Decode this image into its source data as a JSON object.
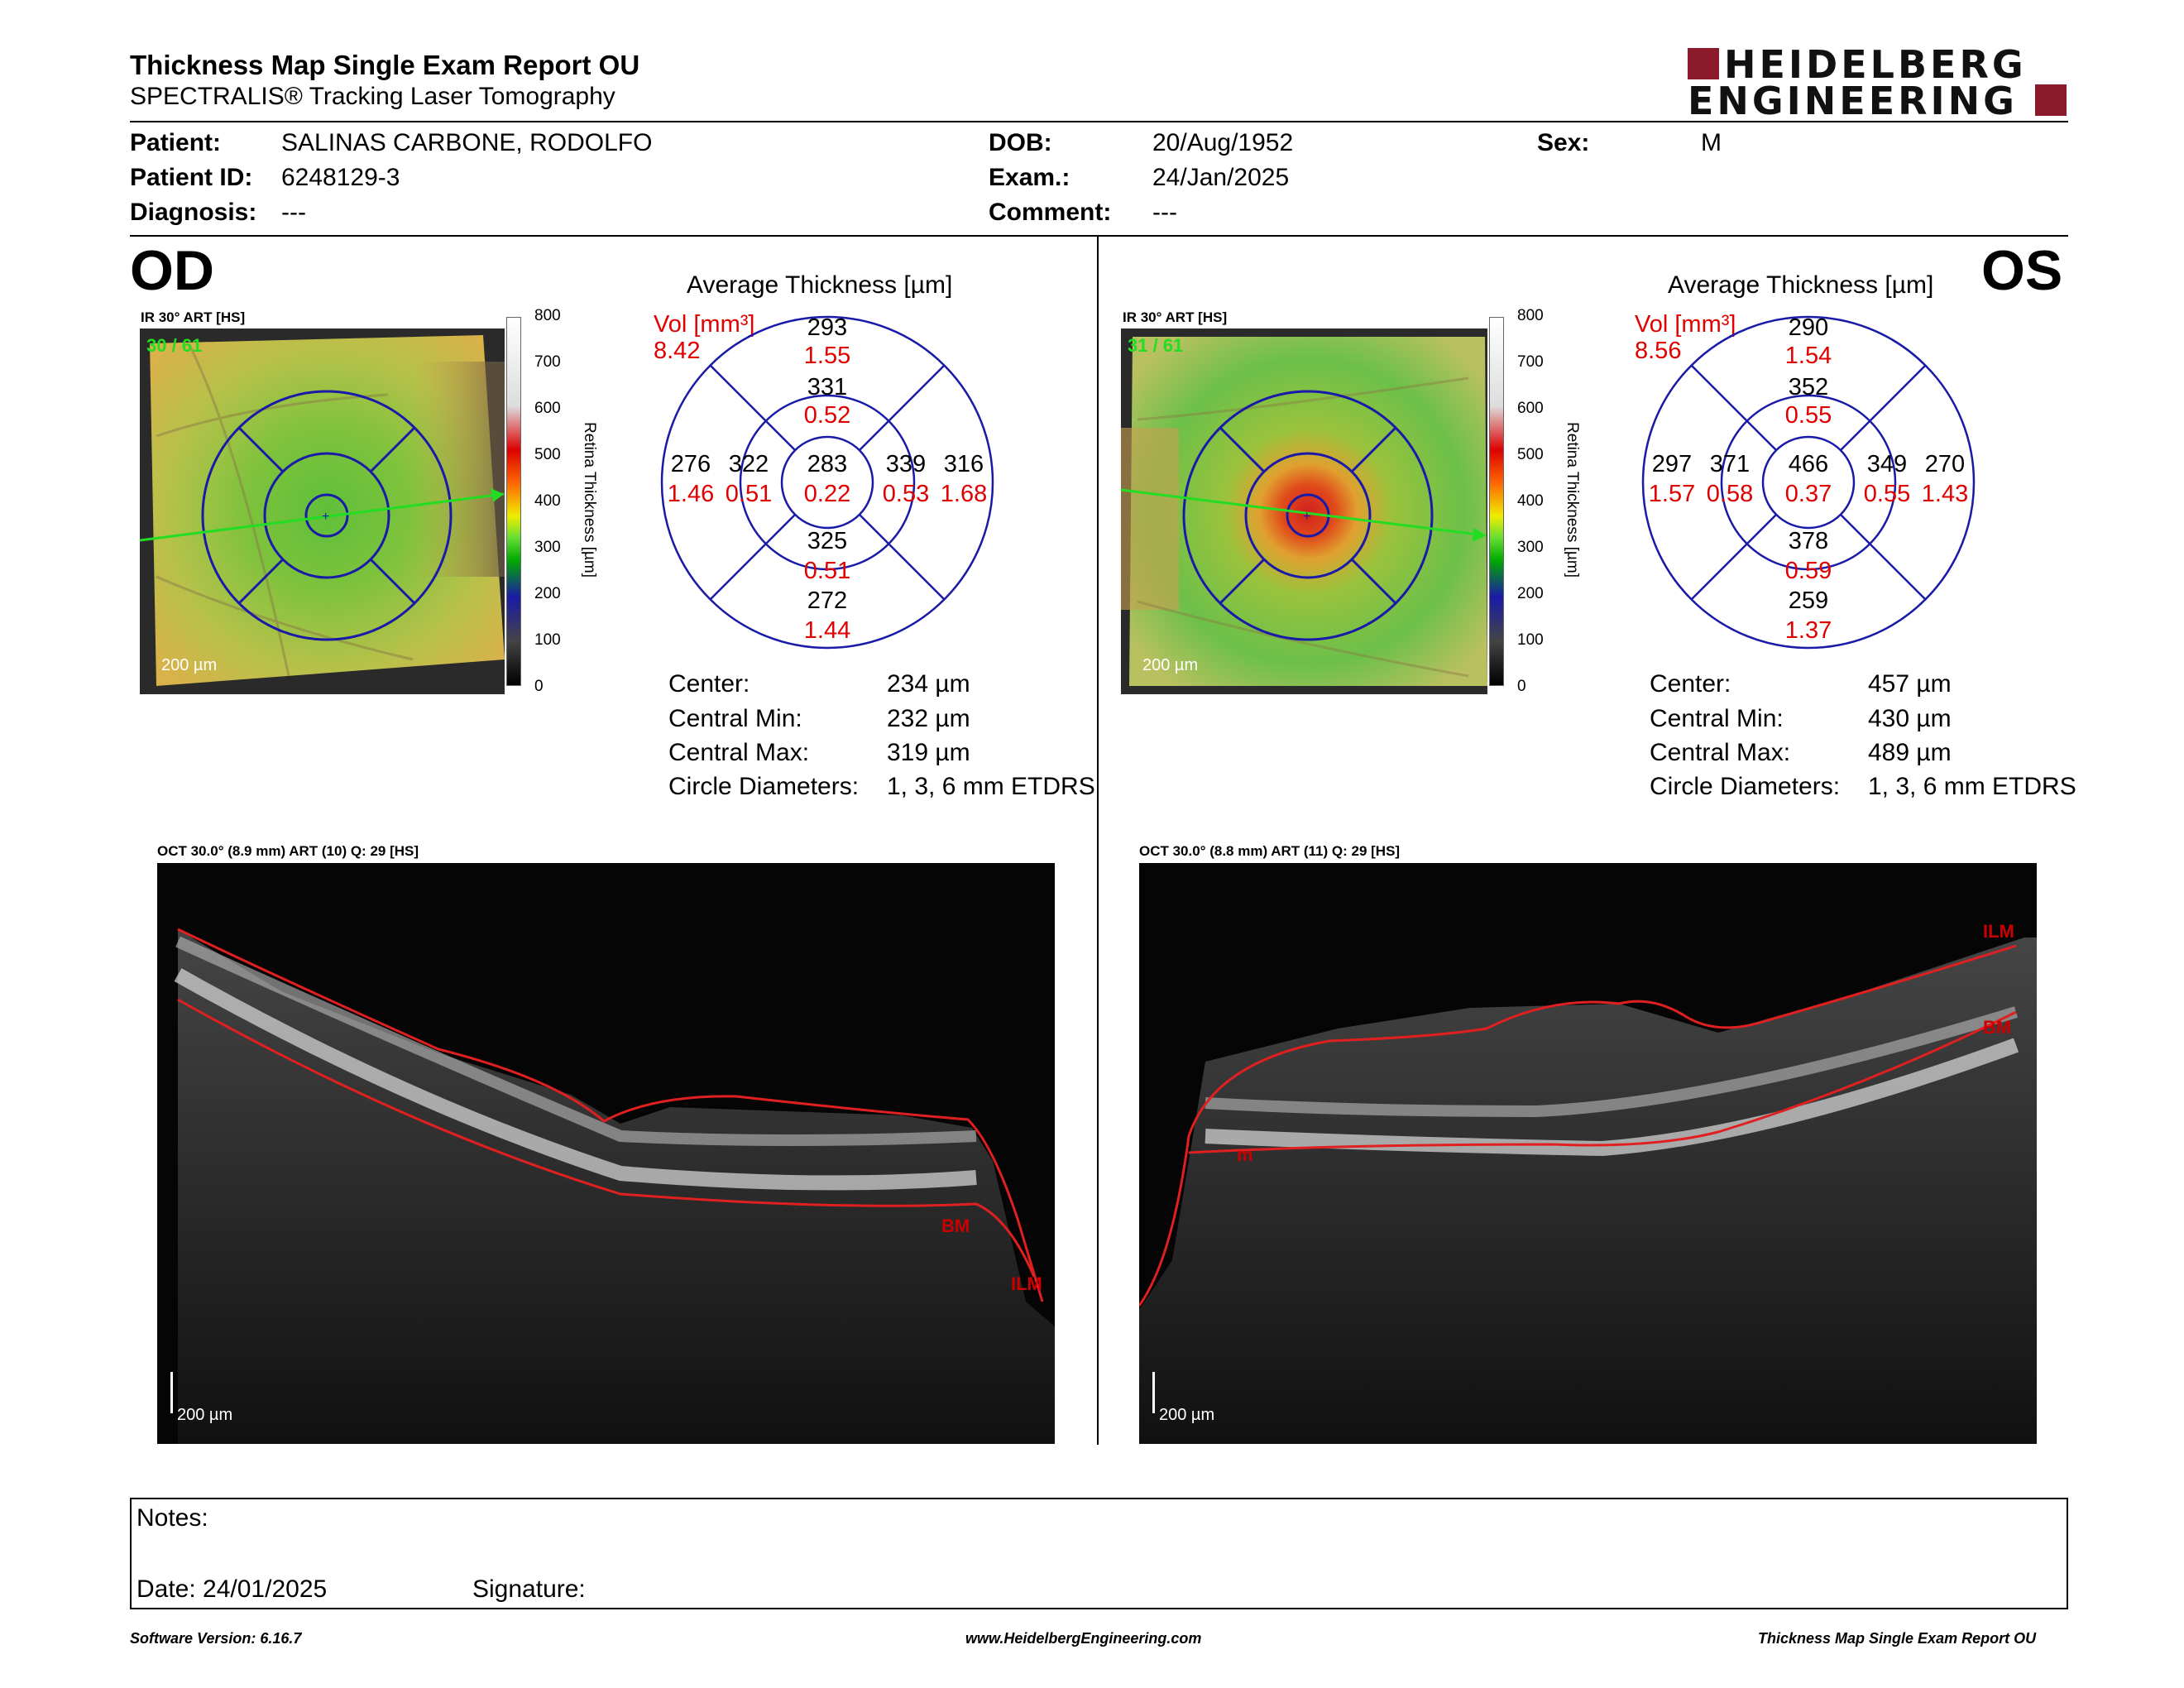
{
  "header": {
    "title": "Thickness Map Single Exam Report OU",
    "subtitle": "SPECTRALIS® Tracking Laser Tomography",
    "logo_line1": "HEIDELBERG",
    "logo_line2": "ENGINEERING"
  },
  "patient": {
    "patient_label": "Patient:",
    "patient_value": "SALINAS CARBONE, RODOLFO",
    "id_label": "Patient ID:",
    "id_value": "6248129-3",
    "diag_label": "Diagnosis:",
    "diag_value": "---",
    "dob_label": "DOB:",
    "dob_value": "20/Aug/1952",
    "exam_label": "Exam.:",
    "exam_value": "24/Jan/2025",
    "comment_label": "Comment:",
    "comment_value": "---",
    "sex_label": "Sex:",
    "sex_value": "M"
  },
  "od": {
    "eye": "OD",
    "ir_caption": "IR 30° ART [HS]",
    "frame_counter": "30 / 61",
    "scale": "200 µm",
    "avg_title": "Average Thickness [µm]",
    "vol_label": "Vol [mm³]",
    "vol_total": "8.42",
    "sectors": {
      "center": [
        "283",
        "0.22"
      ],
      "sup_inner": [
        "331",
        "0.52"
      ],
      "sup_outer": [
        "293",
        "1.55"
      ],
      "inf_inner": [
        "325",
        "0.51"
      ],
      "inf_outer": [
        "272",
        "1.44"
      ],
      "left_inner": [
        "322",
        "0.51"
      ],
      "left_outer": [
        "276",
        "1.46"
      ],
      "right_inner": [
        "339",
        "0.53"
      ],
      "right_outer": [
        "316",
        "1.68"
      ]
    },
    "center_label": "Center:",
    "center_value": "234 µm",
    "cmin_label": "Central Min:",
    "cmin_value": "232 µm",
    "cmax_label": "Central Max:",
    "cmax_value": "319 µm",
    "circ_label": "Circle Diameters:",
    "circ_value": "1, 3, 6 mm ETDRS",
    "oct_caption": "OCT 30.0° (8.9 mm) ART (10) Q: 29 [HS]",
    "oct_scale": "200 µm",
    "label_bm": "BM",
    "label_ilm": "ILM"
  },
  "os": {
    "eye": "OS",
    "ir_caption": "IR 30° ART [HS]",
    "frame_counter": "31 / 61",
    "scale": "200 µm",
    "avg_title": "Average Thickness [µm]",
    "vol_label": "Vol [mm³]",
    "vol_total": "8.56",
    "sectors": {
      "center": [
        "466",
        "0.37"
      ],
      "sup_inner": [
        "352",
        "0.55"
      ],
      "sup_outer": [
        "290",
        "1.54"
      ],
      "inf_inner": [
        "378",
        "0.59"
      ],
      "inf_outer": [
        "259",
        "1.37"
      ],
      "left_inner": [
        "371",
        "0.58"
      ],
      "left_outer": [
        "297",
        "1.57"
      ],
      "right_inner": [
        "349",
        "0.55"
      ],
      "right_outer": [
        "270",
        "1.43"
      ]
    },
    "center_label": "Center:",
    "center_value": "457 µm",
    "cmin_label": "Central Min:",
    "cmin_value": "430 µm",
    "cmax_label": "Central Max:",
    "cmax_value": "489 µm",
    "circ_label": "Circle Diameters:",
    "circ_value": "1, 3, 6 mm ETDRS",
    "oct_caption": "OCT 30.0° (8.8 mm) ART (11) Q: 29 [HS]",
    "oct_scale": "200 µm",
    "label_ilm": "ILM",
    "label_bm": "BM",
    "label_m": "m"
  },
  "colorbar": {
    "ticks": [
      "800",
      "700",
      "600",
      "500",
      "400",
      "300",
      "200",
      "100",
      "0"
    ],
    "title": "Retina Thickness [µm]"
  },
  "notes": {
    "notes_label": "Notes:",
    "date_label": "Date: 24/01/2025",
    "signature_label": "Signature:"
  },
  "footer": {
    "software": "Software Version: 6.16.7",
    "website": "www.HeidelbergEngineering.com",
    "report": "Thickness Map Single Exam Report OU"
  },
  "colors": {
    "accent_red": "#8b1a2b",
    "value_red": "#e00000",
    "grid_blue": "#1a1aa8",
    "scan_green": "#22dd22"
  }
}
